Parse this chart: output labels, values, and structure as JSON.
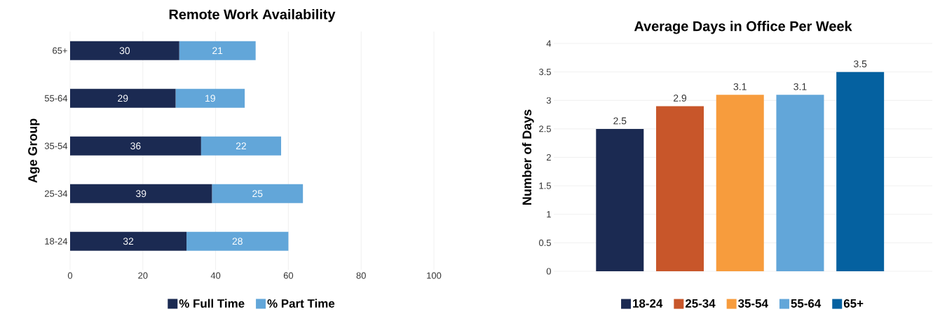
{
  "chart_data": [
    {
      "type": "bar",
      "orientation": "horizontal",
      "stacked": true,
      "title": "Remote Work Availability",
      "ylabel": "Age Group",
      "categories": [
        "65+",
        "55-64",
        "35-54",
        "25-34",
        "18-24"
      ],
      "series": [
        {
          "name": "% Full Time",
          "color": "#1b2a52",
          "values": [
            30,
            29,
            36,
            39,
            32
          ]
        },
        {
          "name": "% Part Time",
          "color": "#62a6d9",
          "values": [
            21,
            19,
            22,
            25,
            28
          ]
        }
      ],
      "xlim": [
        0,
        100
      ],
      "xticks": [
        0,
        20,
        40,
        60,
        80,
        100
      ],
      "grid": "x",
      "legend": "bottom",
      "data_labels": true
    },
    {
      "type": "bar",
      "title": "Average Days in Office Per Week",
      "ylabel": "Number of Days",
      "categories": [
        null,
        null,
        null,
        null,
        null
      ],
      "series": [
        {
          "name": "18-24",
          "color": "#1b2a52",
          "values": [
            2.5,
            null,
            null,
            null,
            null
          ]
        },
        {
          "name": "25-34",
          "color": "#c8562a",
          "values": [
            null,
            2.9,
            null,
            null,
            null
          ]
        },
        {
          "name": "35-54",
          "color": "#f79c3d",
          "values": [
            null,
            null,
            3.1,
            null,
            null
          ]
        },
        {
          "name": "55-64",
          "color": "#62a6d9",
          "values": [
            null,
            null,
            null,
            3.1,
            null
          ]
        },
        {
          "name": "65+",
          "color": "#0561a0",
          "values": [
            null,
            null,
            null,
            null,
            3.5
          ]
        }
      ],
      "ylim": [
        0,
        4
      ],
      "yticks": [
        0,
        0.5,
        1,
        1.5,
        2,
        2.5,
        3,
        3.5,
        4
      ],
      "grid": "y",
      "legend": "bottom",
      "data_labels": true,
      "tick_labels": "y"
    }
  ]
}
